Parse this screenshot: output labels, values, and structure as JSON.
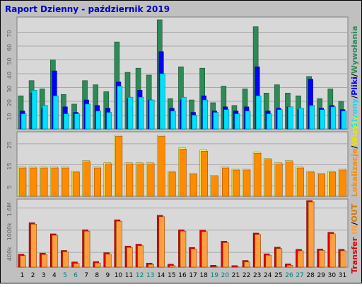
{
  "title": "Raport Dzienny -  październik 2019",
  "side_labels": {
    "top": [
      "Wywołania",
      "/",
      "Pliki",
      "/",
      "Strony"
    ],
    "middle": [
      "Wizyty",
      "/",
      "Lokalizacje"
    ],
    "bottom": [
      "Transfer",
      "IN",
      "/",
      "OUT"
    ]
  },
  "colors": {
    "background": "#c0c0c0",
    "plot_bg": "#d8d8d8",
    "title": "#0000cc",
    "wywolania": "#2e8b57",
    "pliki": "#0000ff",
    "strony": "#00e0ff",
    "wizyty": "#ff8c00",
    "lokalizacje": "#ffff80",
    "transfer": "#dd0000",
    "in": "#ffa040",
    "out": "#dd7700",
    "weekend_label": "#007f7f",
    "day_label": "#000000"
  },
  "chart_data": [
    {
      "type": "bar",
      "name": "hits-files-pages",
      "categories": [
        "1",
        "2",
        "3",
        "4",
        "5",
        "6",
        "7",
        "8",
        "9",
        "10",
        "11",
        "12",
        "13",
        "14",
        "15",
        "16",
        "17",
        "18",
        "19",
        "20",
        "21",
        "22",
        "23",
        "24",
        "25",
        "26",
        "27",
        "28",
        "29",
        "30",
        "31"
      ],
      "weekend_days": [
        "5",
        "6",
        "12",
        "13",
        "19",
        "20",
        "26",
        "27"
      ],
      "y_ticks": [
        10,
        20,
        30,
        40,
        50,
        60,
        70
      ],
      "ylim": [
        0,
        80
      ],
      "series": [
        {
          "name": "Wywołania",
          "values": [
            24,
            35,
            29,
            50,
            25,
            18,
            35,
            32,
            27,
            63,
            41,
            44,
            39,
            79,
            22,
            45,
            21,
            44,
            19,
            31,
            17,
            29,
            74,
            26,
            32,
            26,
            24,
            38,
            22,
            29,
            20
          ]
        },
        {
          "name": "Pliki",
          "values": [
            13,
            26,
            15,
            42,
            16,
            12,
            21,
            17,
            15,
            34,
            22,
            28,
            21,
            56,
            15,
            21,
            12,
            24,
            13,
            16,
            13,
            16,
            45,
            13,
            15,
            16,
            14,
            36,
            15,
            17,
            14
          ]
        },
        {
          "name": "Strony",
          "values": [
            11,
            28,
            17,
            24,
            11,
            11,
            18,
            13,
            12,
            31,
            23,
            23,
            21,
            40,
            13,
            23,
            10,
            21,
            12,
            14,
            11,
            13,
            24,
            11,
            14,
            16,
            15,
            17,
            14,
            16,
            13
          ]
        }
      ]
    },
    {
      "type": "bar",
      "name": "visits-sites",
      "categories": [
        "1",
        "2",
        "3",
        "4",
        "5",
        "6",
        "7",
        "8",
        "9",
        "10",
        "11",
        "12",
        "13",
        "14",
        "15",
        "16",
        "17",
        "18",
        "19",
        "20",
        "21",
        "22",
        "23",
        "24",
        "25",
        "26",
        "27",
        "28",
        "29",
        "30",
        "31"
      ],
      "y_ticks": [
        5,
        15,
        25
      ],
      "ylim": [
        0,
        30
      ],
      "series": [
        {
          "name": "Wizyty",
          "values": [
            14,
            14,
            14,
            14,
            14,
            12,
            17,
            14,
            16,
            29,
            16,
            16,
            16,
            29,
            12,
            23,
            11,
            22,
            10,
            14,
            13,
            13,
            21,
            18,
            16,
            17,
            14,
            12,
            11,
            12,
            13
          ]
        },
        {
          "name": "Lokalizacje",
          "values": [
            9,
            9,
            9,
            9,
            9,
            8,
            11,
            9,
            10,
            22,
            15,
            15,
            15,
            28,
            11,
            15,
            10,
            15,
            9,
            12,
            12,
            11,
            16,
            14,
            14,
            13,
            13,
            11,
            10,
            11,
            11
          ]
        }
      ]
    },
    {
      "type": "bar",
      "name": "transfer",
      "categories": [
        "1",
        "2",
        "3",
        "4",
        "5",
        "6",
        "7",
        "8",
        "9",
        "10",
        "11",
        "12",
        "13",
        "14",
        "15",
        "16",
        "17",
        "18",
        "19",
        "20",
        "21",
        "22",
        "23",
        "24",
        "25",
        "26",
        "27",
        "28",
        "29",
        "30",
        "31"
      ],
      "y_ticks": [
        400,
        1000,
        1600
      ],
      "y_tick_labels": [
        "400k",
        "1000k",
        "1.6M"
      ],
      "ylim": [
        0,
        1800
      ],
      "series": [
        {
          "name": "Transfer",
          "values": [
            350,
            1200,
            380,
            900,
            450,
            140,
            1010,
            150,
            390,
            1280,
            570,
            620,
            110,
            1400,
            80,
            1010,
            530,
            1000,
            50,
            700,
            40,
            180,
            920,
            360,
            540,
            90,
            480,
            1800,
            490,
            940,
            480
          ]
        }
      ]
    }
  ]
}
